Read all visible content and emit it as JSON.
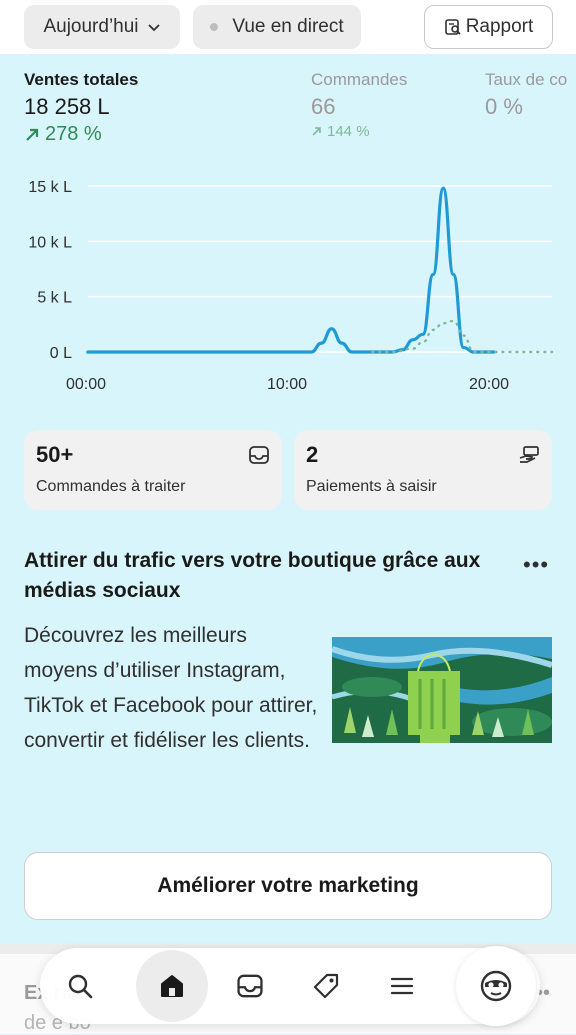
{
  "filters": {
    "date_label": "Aujourd’hui",
    "live_label": "Vue en direct",
    "report_label": "Rapport"
  },
  "metrics": {
    "sales": {
      "label": "Ventes totales",
      "value": "18 258 L",
      "delta": "278 %"
    },
    "orders": {
      "label": "Commandes",
      "value": "66",
      "delta": "144 %"
    },
    "rate": {
      "label": "Taux de co",
      "value": "0 %"
    }
  },
  "chart_data": {
    "type": "line",
    "y_ticks": [
      "15 k L",
      "10 k L",
      "5 k L",
      "0 L"
    ],
    "x_ticks": [
      "00:00",
      "10:00",
      "20:00"
    ],
    "ylim": [
      0,
      15000
    ],
    "xlim_hours": [
      0,
      24
    ],
    "series": [
      {
        "style": "solid",
        "color": "#1e9bd7",
        "x": [
          0,
          10,
          11,
          11.5,
          12,
          12.5,
          13,
          14,
          15,
          15.5,
          16,
          16.5,
          17,
          17.5,
          18,
          18.5,
          19,
          20
        ],
        "y": [
          0,
          0,
          0,
          800,
          2100,
          800,
          0,
          0,
          0,
          200,
          1100,
          1600,
          7000,
          14800,
          7000,
          400,
          0,
          0
        ]
      },
      {
        "style": "dotted",
        "color": "#7fb89a",
        "x": [
          14,
          15,
          16,
          16.5,
          17,
          17.5,
          18,
          18.5,
          19,
          20,
          24
        ],
        "y": [
          0,
          0,
          300,
          900,
          2000,
          2600,
          2800,
          1500,
          0,
          0,
          0
        ]
      }
    ],
    "grid": true
  },
  "cards": {
    "orders": {
      "count": "50+",
      "label": "Commandes à traiter"
    },
    "payments": {
      "count": "2",
      "label": "Paiements à saisir"
    }
  },
  "promo": {
    "title": "Attirer du trafic vers votre boutique grâce aux médias sociaux",
    "menu": "•••",
    "body": "Découvrez les meilleurs moyens d’utiliser Instagram, TikTok et Facebook pour attirer, convertir et fidéliser les clients.",
    "cta": "Améliorer votre marketing"
  },
  "peek": {
    "title": "Ex                              ria",
    "sub": "de      e bo",
    "menu": "•••"
  },
  "colors": {
    "background": "#d8f5fb",
    "line": "#1e9bd7",
    "positive": "#2e8b57"
  }
}
